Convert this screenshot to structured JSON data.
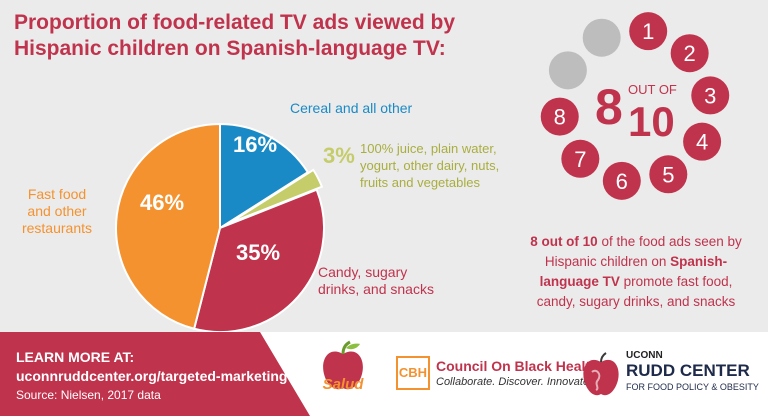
{
  "title": "Proportion of food-related TV ads viewed by Hispanic children on Spanish-language TV:",
  "chart_data": {
    "type": "pie",
    "slices": [
      {
        "label": "Cereal and all other",
        "value": 16,
        "value_label": "16%",
        "color": "#1a8ac6"
      },
      {
        "label": "100% juice, plain water, yogurt, other dairy, nuts, fruits and vegetables",
        "value": 3,
        "value_label": "3%",
        "color": "#c5cc6a"
      },
      {
        "label": "Candy, sugary drinks, and snacks",
        "value": 35,
        "value_label": "35%",
        "color": "#c0334d"
      },
      {
        "label": "Fast food and other restaurants",
        "value": 46,
        "value_label": "46%",
        "color": "#f4922f"
      }
    ]
  },
  "labels": {
    "cereal": "Cereal and all other",
    "juice_lines": [
      "100% juice, plain water,",
      "yogurt, other dairy, nuts,",
      "fruits and vegetables"
    ],
    "candy_lines": [
      "Candy, sugary",
      "drinks, and snacks"
    ],
    "fast_lines": [
      "Fast food",
      "and other",
      "restaurants"
    ]
  },
  "infographic": {
    "big_number": "8",
    "out_of": "OUT OF",
    "total": "10",
    "numbers": [
      "1",
      "2",
      "3",
      "4",
      "5",
      "6",
      "7",
      "8"
    ],
    "red_color": "#c0334d",
    "grey_color": "#bdbdbd"
  },
  "message": {
    "part1": "8 out of 10",
    "part2": " of the food ads seen by Hispanic children on ",
    "part3": "Spanish-language TV",
    "part4": " promote fast food, candy, sugary drinks, and snacks"
  },
  "footer": {
    "learn": "LEARN MORE AT:",
    "url": "uconnruddcenter.org/targeted-marketing",
    "source": "Source: Nielsen, 2017 data",
    "salud": "Salud",
    "cbh_mark": "CBH",
    "cbh_name": "Council On Black Health",
    "cbh_tagline": "Collaborate. Discover. Innovate.",
    "uconn": "UCONN",
    "rudd": "RUDD CENTER",
    "rudd_sub": "FOR FOOD POLICY & OBESITY"
  }
}
